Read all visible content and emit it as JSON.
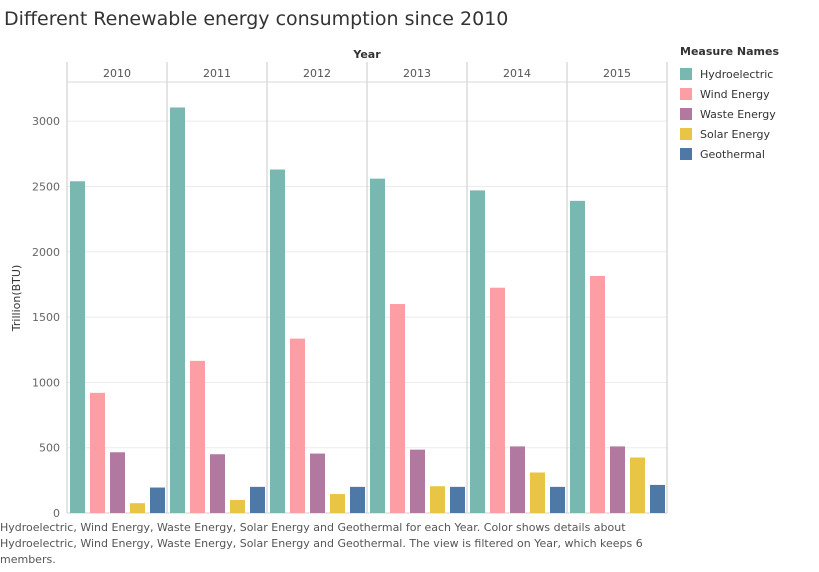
{
  "title": "Different Renewable energy consumption since 2010",
  "legend": {
    "title": "Measure Names"
  },
  "caption": "Hydroelectric, Wind Energy, Waste Energy, Solar Energy and Geothermal for each Year.  Color shows details about Hydroelectric, Wind Energy, Waste Energy, Solar Energy and Geothermal. The view is filtered on Year, which keeps 6 members.",
  "chart_data": {
    "type": "bar",
    "title": "Different Renewable energy consumption since 2010",
    "xlabel": "Year",
    "ylabel": "Trillion(BTU)",
    "categories": [
      "2010",
      "2011",
      "2012",
      "2013",
      "2014",
      "2015"
    ],
    "ylim": [
      0,
      3300
    ],
    "yticks": [
      0,
      500,
      1000,
      1500,
      2000,
      2500,
      3000
    ],
    "grid": true,
    "legend_position": "right",
    "series": [
      {
        "name": "Hydroelectric",
        "color": "#79b8b1",
        "values": [
          2540,
          3105,
          2630,
          2560,
          2470,
          2390
        ]
      },
      {
        "name": "Wind Energy",
        "color": "#fd9ea5",
        "values": [
          920,
          1165,
          1335,
          1600,
          1725,
          1815
        ]
      },
      {
        "name": "Waste Energy",
        "color": "#b178a0",
        "values": [
          465,
          450,
          455,
          485,
          510,
          510
        ]
      },
      {
        "name": "Solar Energy",
        "color": "#e9c545",
        "values": [
          75,
          100,
          145,
          205,
          310,
          425
        ]
      },
      {
        "name": "Geothermal",
        "color": "#4e79a6",
        "values": [
          195,
          200,
          200,
          200,
          200,
          215
        ]
      }
    ]
  }
}
